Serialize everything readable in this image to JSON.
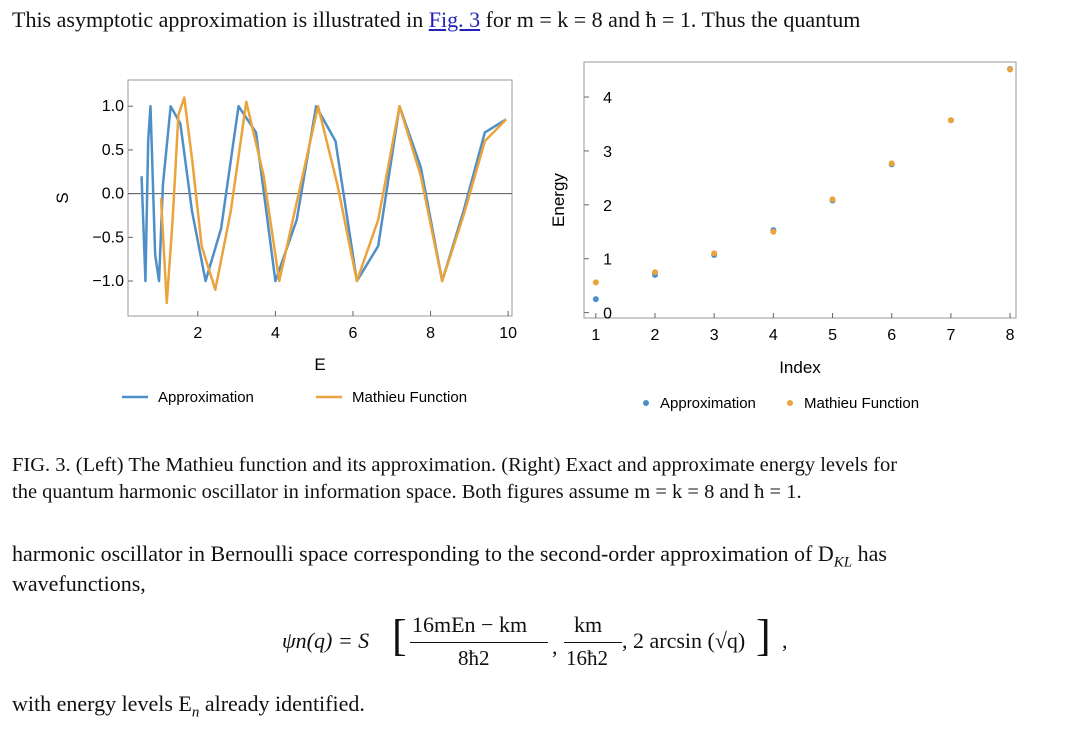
{
  "text": {
    "line1_before": "This asymptotic approximation is illustrated in ",
    "line1_link": "Fig. 3",
    "line1_after": " for m = k = 8 and ħ = 1. Thus the quantum",
    "caption_line1": "FIG. 3. (Left) The Mathieu function and its approximation. (Right) Exact and approximate energy levels for",
    "caption_line2": "the quantum harmonic oscillator in information space. Both figures assume m = k = 8 and ħ = 1.",
    "para2_line1": "harmonic oscillator in Bernoulli space corresponding to the second-order approximation of D",
    "para2_sub": "KL",
    "para2_line1_end": " has",
    "para2_line2": "wavefunctions,",
    "final_line": "with energy levels E",
    "final_sub": "n",
    "final_end": " already identified."
  },
  "equation": {
    "lhs": "ψn(q) = S",
    "frac1_num": "16mEn − km",
    "frac1_den": "8ħ2",
    "frac2_num": "km",
    "frac2_den": "16ħ2",
    "tail": ", 2 arcsin (√q)"
  },
  "colors": {
    "approx": "#4e8fc9",
    "mathieu": "#eba33b",
    "link": "#2222bb"
  },
  "chart_data": [
    {
      "type": "line",
      "xlabel": "E",
      "ylabel": "S",
      "xlim": [
        0.2,
        10.1
      ],
      "ylim": [
        -1.4,
        1.3
      ],
      "xticks": [
        2,
        4,
        6,
        8,
        10
      ],
      "yticks": [
        1.0,
        0.5,
        0.0,
        -0.5,
        -1.0
      ],
      "ytick_labels": [
        "1.0",
        "0.5",
        "0.0",
        "−0.5",
        "−1.0"
      ],
      "legend": [
        "Approximation",
        "Mathieu Function"
      ],
      "legend_position": "bottom",
      "series": [
        {
          "name": "Approximation",
          "color": "#4e8fc9",
          "x": [
            0.55,
            0.65,
            0.72,
            0.78,
            0.9,
            1.0,
            1.1,
            1.3,
            1.55,
            1.85,
            2.2,
            2.6,
            3.05,
            3.5,
            4.0,
            4.55,
            5.05,
            5.55,
            6.1,
            6.65,
            7.2,
            7.75,
            8.3,
            8.85,
            9.4,
            9.95
          ],
          "y": [
            0.2,
            -1.0,
            0.6,
            1.0,
            -0.7,
            -1.0,
            0.1,
            1.0,
            0.8,
            -0.2,
            -1.0,
            -0.4,
            1.0,
            0.7,
            -1.0,
            -0.3,
            1.0,
            0.6,
            -1.0,
            -0.6,
            1.0,
            0.3,
            -1.0,
            -0.2,
            0.7,
            0.85
          ]
        },
        {
          "name": "Mathieu Function",
          "color": "#eba33b",
          "x": [
            1.05,
            1.2,
            1.35,
            1.5,
            1.65,
            1.85,
            2.1,
            2.45,
            2.85,
            3.25,
            3.7,
            4.1,
            4.6,
            5.1,
            5.6,
            6.1,
            6.65,
            7.2,
            7.75,
            8.3,
            8.85,
            9.4,
            9.95
          ],
          "y": [
            -0.05,
            -1.25,
            -0.3,
            0.9,
            1.1,
            0.4,
            -0.6,
            -1.1,
            -0.2,
            1.05,
            0.2,
            -1.0,
            0.0,
            1.0,
            0.1,
            -1.0,
            -0.3,
            1.0,
            0.2,
            -1.0,
            -0.25,
            0.6,
            0.85
          ]
        }
      ]
    },
    {
      "type": "scatter",
      "xlabel": "Index",
      "ylabel": "Energy",
      "xlim": [
        0.8,
        8.1
      ],
      "ylim": [
        -0.1,
        4.65
      ],
      "xticks": [
        1,
        2,
        3,
        4,
        5,
        6,
        7,
        8
      ],
      "yticks": [
        0,
        1,
        2,
        3,
        4
      ],
      "legend": [
        "Approximation",
        "Mathieu Function"
      ],
      "legend_position": "bottom",
      "series": [
        {
          "name": "Approximation",
          "color": "#4e8fc9",
          "x": [
            1,
            2,
            3,
            4,
            5,
            6,
            7,
            8
          ],
          "y": [
            0.25,
            0.7,
            1.07,
            1.53,
            2.08,
            2.75,
            3.57,
            4.52
          ]
        },
        {
          "name": "Mathieu Function",
          "color": "#eba33b",
          "x": [
            1,
            2,
            3,
            4,
            5,
            6,
            7,
            8
          ],
          "y": [
            0.56,
            0.75,
            1.1,
            1.5,
            2.1,
            2.77,
            3.57,
            4.51
          ]
        }
      ]
    }
  ]
}
